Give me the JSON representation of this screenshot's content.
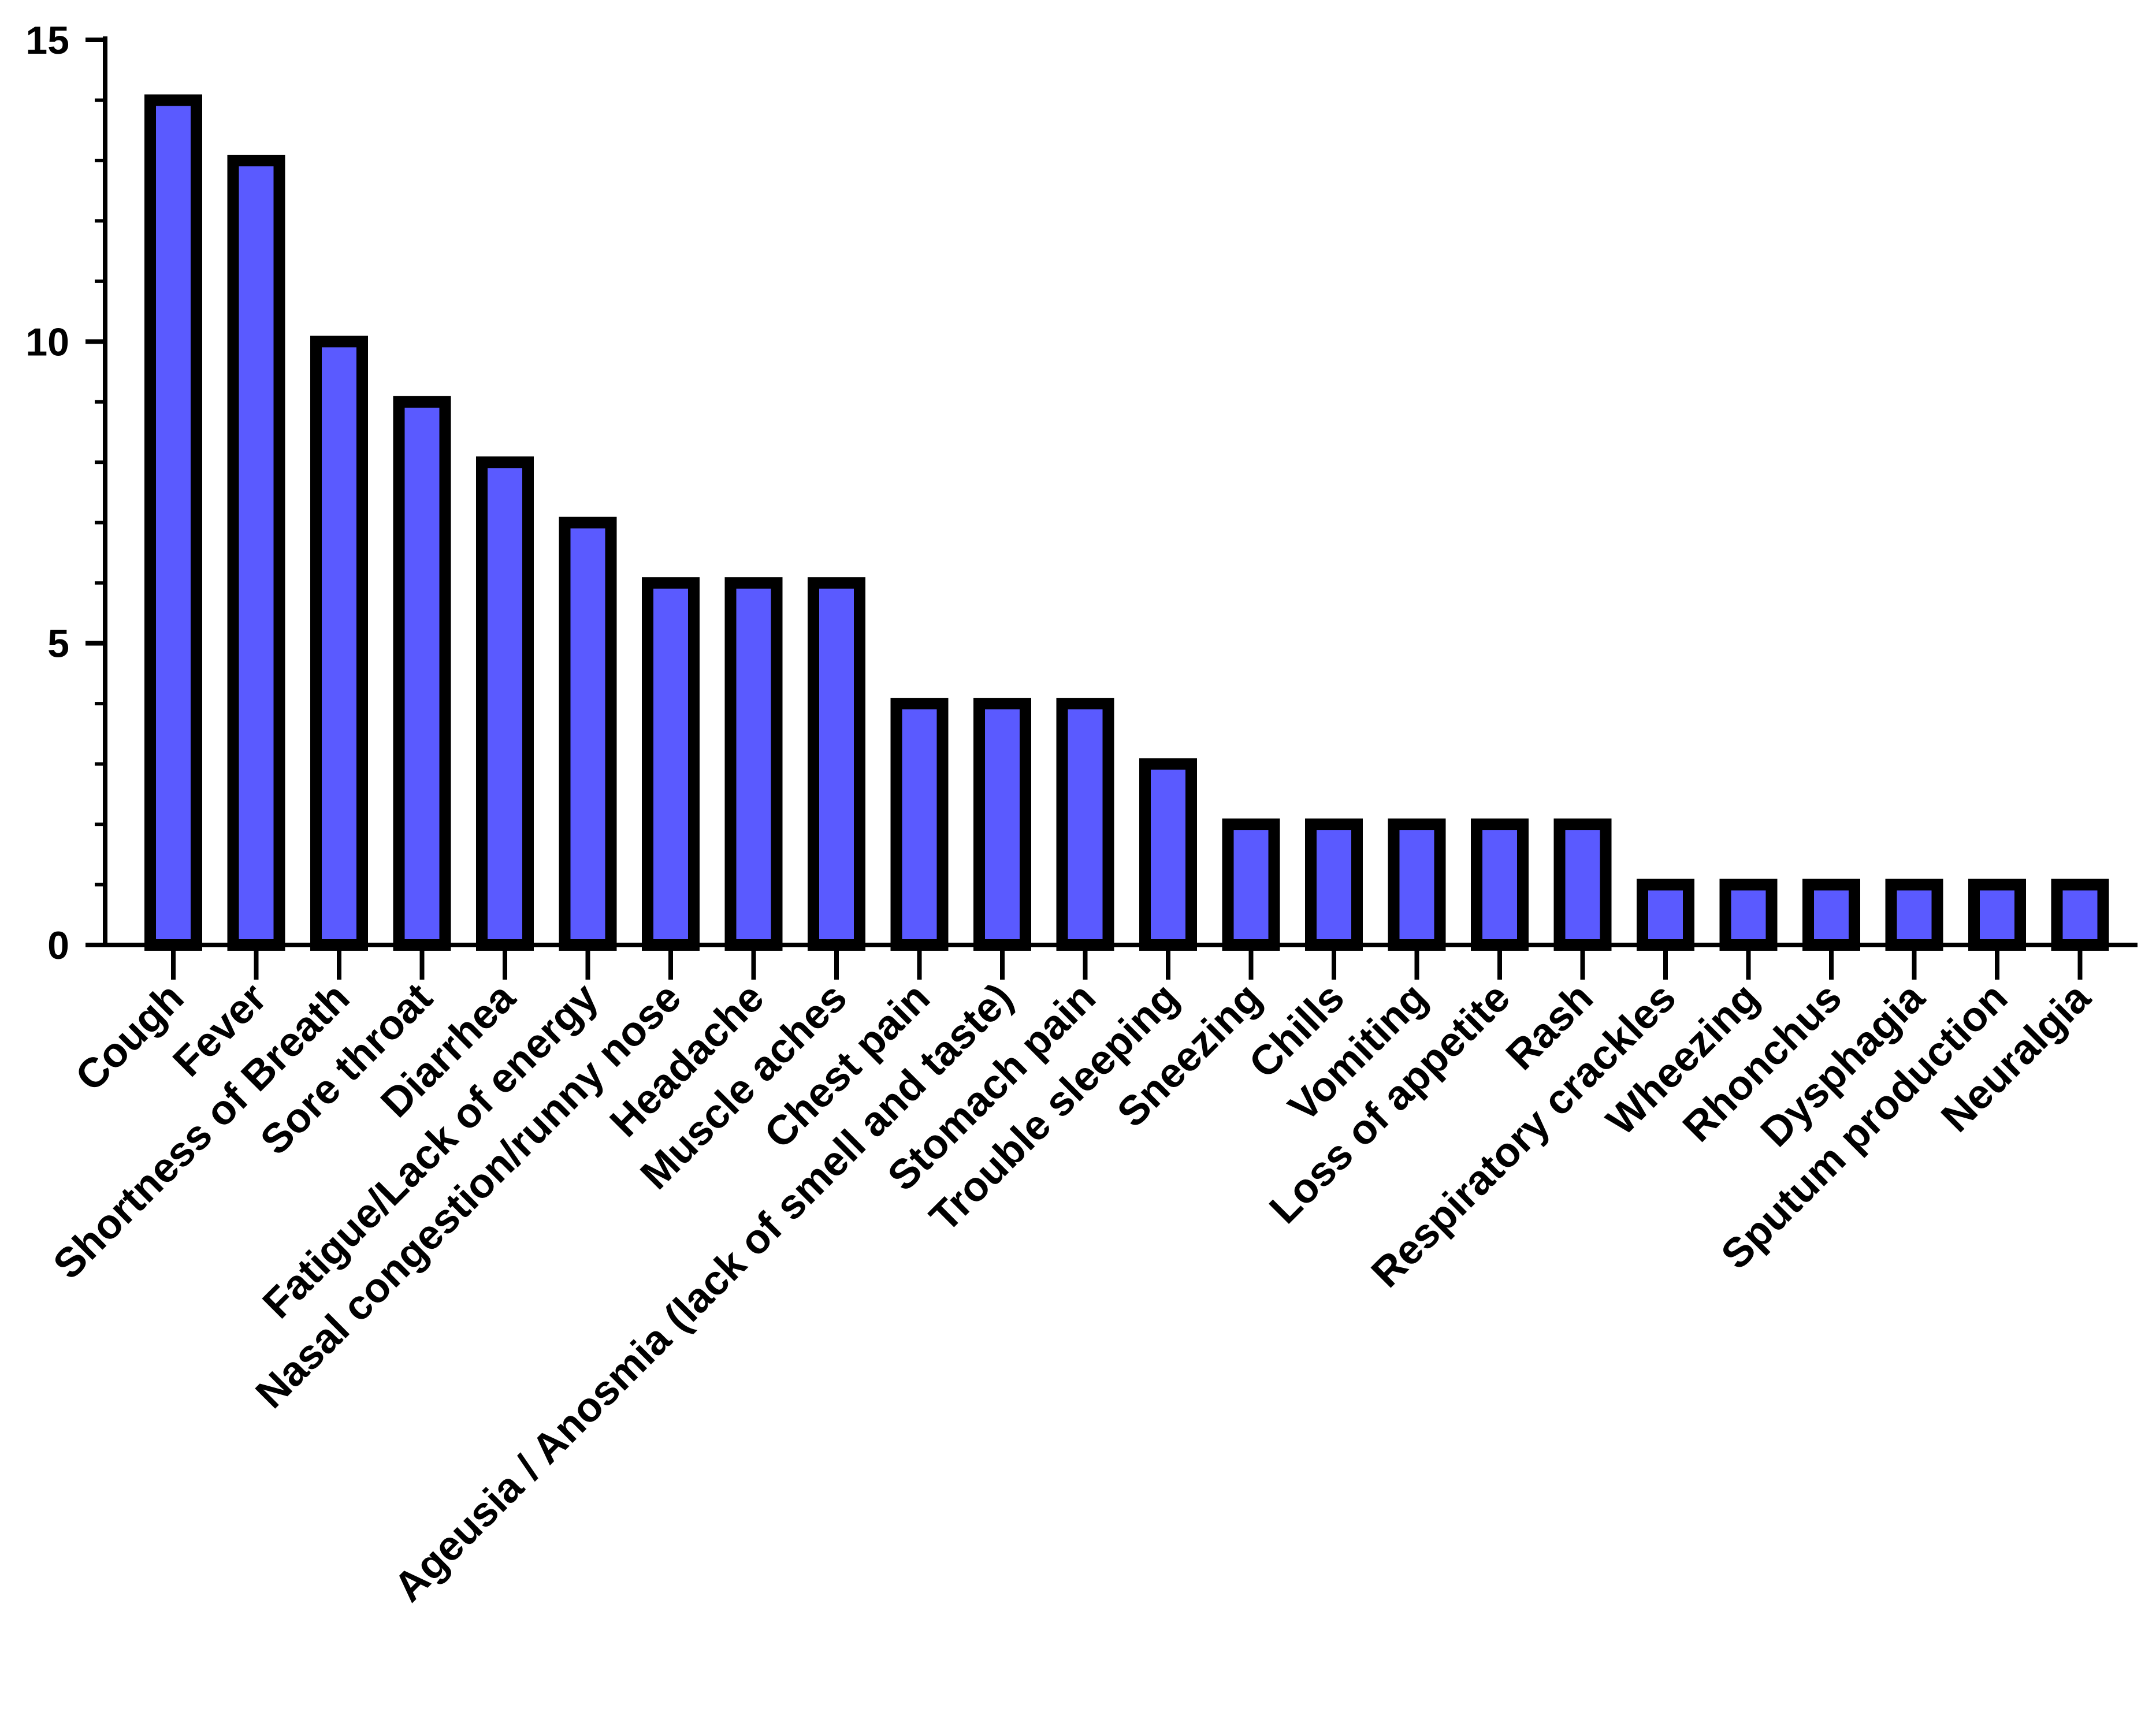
{
  "chart_data": {
    "type": "bar",
    "title": "",
    "xlabel": "",
    "ylabel": "",
    "ylim": [
      0,
      15
    ],
    "yticks": [
      0,
      5,
      10,
      15
    ],
    "grid": false,
    "legend": "none",
    "bar_color": "#5a5aff",
    "bar_outline_color": "#000000",
    "axis_color": "#000000",
    "categories": [
      "Cough",
      "Fever",
      "Shortness of Breath",
      "Sore throat",
      "Diarrhea",
      "Fatigue/Lack of energy",
      "Nasal congestion/runny nose",
      "Headache",
      "Muscle aches",
      "Chest pain",
      "Ageusia / Anosmia (lack of smell and taste)",
      "Stomach pain",
      "Trouble sleeping",
      "Sneezing",
      "Chills",
      "Vomiting",
      "Loss of appetite",
      "Rash",
      "Respiratory crackles",
      "Wheezing",
      "Rhonchus",
      "Dysphagia",
      "Sputum production",
      "Neuralgia"
    ],
    "values": [
      14,
      13,
      10,
      9,
      8,
      7,
      6,
      6,
      6,
      4,
      4,
      4,
      3,
      2,
      2,
      2,
      2,
      2,
      1,
      1,
      1,
      1,
      1,
      1
    ]
  }
}
